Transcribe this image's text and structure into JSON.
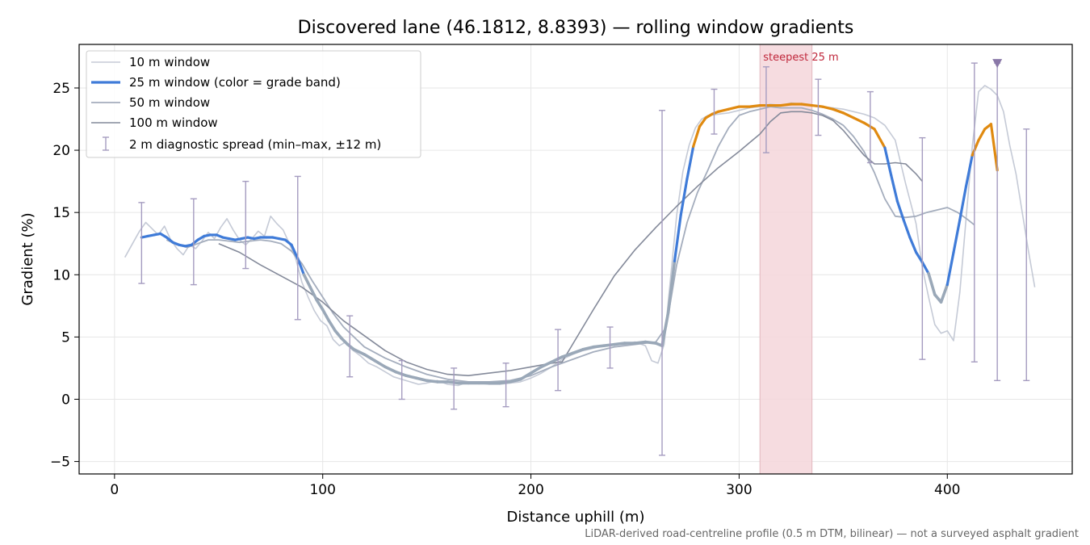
{
  "chart_data": {
    "type": "line",
    "title": "Discovered lane (46.1812, 8.8393) — rolling window gradients",
    "xlabel": "Distance uphill (m)",
    "ylabel": "Gradient (%)",
    "xlim": [
      -17,
      460
    ],
    "ylim": [
      -6,
      28.5
    ],
    "x_ticks": [
      0,
      100,
      200,
      300,
      400
    ],
    "y_ticks": [
      -5,
      0,
      5,
      10,
      15,
      20,
      25
    ],
    "grid": true,
    "legend_position": "upper-left",
    "footnote": "LiDAR-derived road-centreline profile (0.5 m DTM, bilinear) — not a surveyed asphalt gradient",
    "colors": {
      "w10": "#c5cad6",
      "w25_low": "#3f7bd8",
      "w25_high": "#e08a10",
      "w25_grey": "#9aa8b8",
      "w50": "#a4adbd",
      "w100": "#848a9a",
      "spread": "#a59cc0",
      "steep_band": "#f4d6da",
      "steep_text": "#c0283c",
      "marker": "#8a78a8"
    },
    "steepest": {
      "label": "steepest 25 m",
      "x_start": 310,
      "x_end": 335
    },
    "peak_marker": {
      "x": 424,
      "y": 27.0
    },
    "series": [
      {
        "name": "10 m window",
        "x": [
          5,
          9,
          12,
          15,
          18,
          21,
          24,
          27,
          30,
          33,
          36,
          39,
          42,
          45,
          48,
          51,
          54,
          57,
          60,
          63,
          66,
          69,
          72,
          75,
          78,
          81,
          84,
          87,
          90,
          93,
          96,
          99,
          102,
          105,
          108,
          111,
          114,
          118,
          122,
          126,
          130,
          134,
          138,
          142,
          146,
          150,
          155,
          160,
          165,
          170,
          175,
          180,
          185,
          190,
          195,
          200,
          205,
          210,
          215,
          220,
          225,
          230,
          235,
          240,
          245,
          250,
          255,
          258,
          261,
          264,
          267,
          270,
          273,
          276,
          279,
          282,
          285,
          290,
          295,
          300,
          305,
          310,
          315,
          320,
          325,
          330,
          335,
          340,
          345,
          350,
          355,
          360,
          365,
          370,
          375,
          380,
          385,
          388,
          391,
          394,
          397,
          400,
          403,
          406,
          409,
          412,
          415,
          418,
          421,
          424,
          427,
          430,
          433,
          436,
          439,
          442
        ],
        "y": [
          11.4,
          12.6,
          13.5,
          14.2,
          13.7,
          13.2,
          13.9,
          12.8,
          12.1,
          11.6,
          12.4,
          12.1,
          12.7,
          13.4,
          12.9,
          13.8,
          14.5,
          13.6,
          12.8,
          12.4,
          12.9,
          13.5,
          13.1,
          14.7,
          14.1,
          13.6,
          12.5,
          11.3,
          9.4,
          8.2,
          7.1,
          6.3,
          5.9,
          4.8,
          4.3,
          4.6,
          4.0,
          3.5,
          2.9,
          2.6,
          2.2,
          1.8,
          1.6,
          1.4,
          1.2,
          1.3,
          1.5,
          1.2,
          1.1,
          1.4,
          1.3,
          1.2,
          1.2,
          1.3,
          1.4,
          1.7,
          2.1,
          2.6,
          3.2,
          3.6,
          3.9,
          4.1,
          4.3,
          4.4,
          4.4,
          4.6,
          4.3,
          3.1,
          2.9,
          4.4,
          9.6,
          14.8,
          18.3,
          20.4,
          21.8,
          22.5,
          22.8,
          22.9,
          23.0,
          23.2,
          23.4,
          23.5,
          23.7,
          23.6,
          23.8,
          23.7,
          23.6,
          23.5,
          23.4,
          23.3,
          23.1,
          22.9,
          22.6,
          22.0,
          20.8,
          17.3,
          14.1,
          10.6,
          8.2,
          6.0,
          5.3,
          5.5,
          4.7,
          8.6,
          14.5,
          20.3,
          24.7,
          25.2,
          24.9,
          24.4,
          23.1,
          20.4,
          18.1,
          15.0,
          11.9,
          9.0
        ]
      },
      {
        "name": "25 m window (color = grade band)",
        "x": [
          13,
          16,
          19,
          22,
          25,
          28,
          31,
          34,
          37,
          40,
          43,
          46,
          49,
          52,
          55,
          58,
          61,
          64,
          67,
          70,
          73,
          76,
          79,
          82,
          85,
          88,
          91,
          94,
          97,
          100,
          103,
          106,
          109,
          112,
          115,
          120,
          125,
          130,
          135,
          140,
          145,
          150,
          155,
          160,
          165,
          170,
          175,
          180,
          185,
          190,
          195,
          200,
          205,
          210,
          215,
          220,
          225,
          230,
          235,
          240,
          245,
          250,
          255,
          260,
          263,
          266,
          269,
          272,
          275,
          278,
          281,
          284,
          287,
          290,
          295,
          300,
          305,
          310,
          315,
          320,
          325,
          330,
          335,
          340,
          345,
          350,
          355,
          360,
          365,
          370,
          373,
          376,
          379,
          382,
          385,
          388,
          391,
          394,
          397,
          400,
          403,
          406,
          409,
          412,
          415,
          418,
          421,
          424
        ],
        "y": [
          13.0,
          13.1,
          13.2,
          13.3,
          13.0,
          12.6,
          12.4,
          12.3,
          12.4,
          12.8,
          13.1,
          13.2,
          13.2,
          13.0,
          12.9,
          12.8,
          12.9,
          13.0,
          12.9,
          13.0,
          13.0,
          13.0,
          12.9,
          12.8,
          12.4,
          11.3,
          10.0,
          9.0,
          8.0,
          7.2,
          6.3,
          5.5,
          4.9,
          4.4,
          4.0,
          3.6,
          3.1,
          2.6,
          2.2,
          1.9,
          1.7,
          1.5,
          1.4,
          1.4,
          1.3,
          1.3,
          1.3,
          1.3,
          1.3,
          1.4,
          1.6,
          2.1,
          2.6,
          3.0,
          3.4,
          3.7,
          4.0,
          4.2,
          4.3,
          4.4,
          4.5,
          4.5,
          4.6,
          4.5,
          4.3,
          7.0,
          11.1,
          14.8,
          17.7,
          20.3,
          21.9,
          22.6,
          22.9,
          23.1,
          23.3,
          23.5,
          23.5,
          23.6,
          23.6,
          23.6,
          23.7,
          23.7,
          23.6,
          23.5,
          23.3,
          23.0,
          22.6,
          22.2,
          21.7,
          20.2,
          18.0,
          15.9,
          14.4,
          13.0,
          11.8,
          11.0,
          10.1,
          8.4,
          7.8,
          9.2,
          11.8,
          14.4,
          17.1,
          19.6,
          20.8,
          21.7,
          22.1,
          18.4
        ]
      },
      {
        "name": "50 m window",
        "x": [
          25,
          30,
          35,
          40,
          45,
          50,
          55,
          60,
          65,
          70,
          75,
          80,
          85,
          90,
          95,
          100,
          105,
          110,
          115,
          120,
          130,
          140,
          150,
          160,
          170,
          180,
          190,
          200,
          210,
          220,
          230,
          240,
          250,
          260,
          265,
          270,
          275,
          280,
          285,
          290,
          295,
          300,
          305,
          310,
          315,
          320,
          325,
          330,
          335,
          340,
          345,
          350,
          355,
          360,
          365,
          370,
          375,
          380,
          385,
          390,
          395,
          400,
          405,
          410,
          413
        ],
        "y": [
          12.8,
          12.4,
          12.2,
          12.5,
          12.8,
          12.8,
          12.7,
          12.6,
          12.7,
          12.8,
          12.7,
          12.5,
          11.9,
          10.9,
          9.5,
          8.2,
          6.9,
          5.8,
          5.0,
          4.2,
          3.3,
          2.6,
          2.0,
          1.6,
          1.4,
          1.4,
          1.5,
          1.9,
          2.6,
          3.2,
          3.8,
          4.2,
          4.4,
          4.6,
          5.8,
          10.8,
          14.2,
          16.6,
          18.4,
          20.3,
          21.8,
          22.8,
          23.1,
          23.3,
          23.5,
          23.4,
          23.4,
          23.4,
          23.2,
          22.9,
          22.5,
          22.0,
          21.1,
          19.9,
          18.2,
          16.1,
          14.7,
          14.6,
          14.7,
          15.0,
          15.2,
          15.4,
          15.0,
          14.4,
          14.0
        ]
      },
      {
        "name": "100 m window",
        "x": [
          50,
          60,
          70,
          80,
          90,
          100,
          110,
          120,
          130,
          140,
          150,
          160,
          170,
          180,
          190,
          200,
          210,
          215,
          220,
          230,
          240,
          250,
          260,
          270,
          280,
          290,
          300,
          305,
          310,
          315,
          320,
          325,
          330,
          335,
          340,
          345,
          350,
          355,
          360,
          365,
          370,
          375,
          380,
          385,
          388
        ],
        "y": [
          12.5,
          11.8,
          10.8,
          9.9,
          9.0,
          7.8,
          6.3,
          5.1,
          3.9,
          3.0,
          2.4,
          2.0,
          1.9,
          2.1,
          2.3,
          2.6,
          2.9,
          3.0,
          4.4,
          7.2,
          9.9,
          12.0,
          13.8,
          15.5,
          17.1,
          18.6,
          19.9,
          20.6,
          21.3,
          22.3,
          23.0,
          23.1,
          23.1,
          23.0,
          22.8,
          22.4,
          21.6,
          20.6,
          19.6,
          18.9,
          18.9,
          19.0,
          18.9,
          18.1,
          17.5
        ]
      },
      {
        "name": "2 m diagnostic spread (min–max, ±12 m)",
        "x": [
          13,
          38,
          63,
          88,
          113,
          138,
          163,
          188,
          213,
          238,
          263,
          288,
          313,
          338,
          363,
          388,
          413,
          424,
          438
        ],
        "low": [
          9.3,
          9.2,
          10.5,
          6.4,
          1.8,
          0.0,
          -0.8,
          -0.6,
          0.7,
          2.5,
          -4.5,
          21.3,
          19.8,
          21.2,
          19.0,
          3.2,
          3.0,
          1.5,
          1.5
        ],
        "high": [
          15.8,
          16.1,
          17.5,
          17.9,
          6.7,
          3.1,
          2.5,
          2.9,
          5.6,
          5.8,
          23.2,
          24.9,
          26.7,
          25.7,
          24.7,
          21.0,
          27.0,
          27.0,
          21.7
        ]
      }
    ]
  }
}
